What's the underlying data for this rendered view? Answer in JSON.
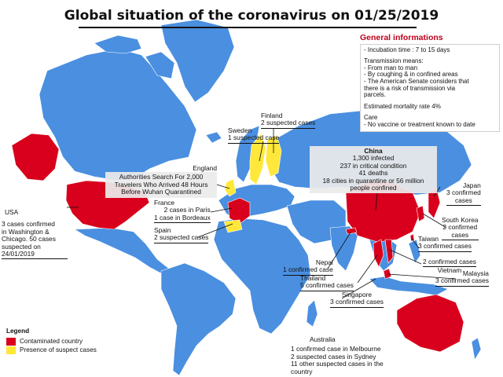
{
  "title": "Global situation of the coronavirus on 01/25/2019",
  "colors": {
    "ocean": "#ffffff",
    "land": "#4a8fe0",
    "contaminated": "#d8001c",
    "suspect": "#ffe83a"
  },
  "info": {
    "heading": "General informations",
    "incubation": "- Incubation time : 7 to 15 days",
    "transmission_title": "Transmission means:",
    "transmission": [
      "- From man to man",
      "- By coughing & in confined areas",
      "- The American Senate considers that",
      "  there is a risk of transmission via",
      "  parcels."
    ],
    "mortality": "Estimated mortality rate 4%",
    "care_title": "Care",
    "care": "- No vaccine or treatment known to date"
  },
  "countries": {
    "finland": {
      "name": "Finland",
      "lines": [
        "2 suspected cases"
      ]
    },
    "sweden": {
      "name": "Sweden",
      "lines": [
        "1 suspected case"
      ]
    },
    "china": {
      "name": "China",
      "lines": [
        "1,300 infected",
        "237 in critical condition",
        "41 deaths",
        "18 cities in quarantine or 56 million",
        "people confined"
      ]
    },
    "england": {
      "name": "England",
      "lines": [
        "Authorities Search For 2,000",
        "Travelers Who Arrived 48 Hours",
        "Before Wuhan Quarantined"
      ]
    },
    "japan": {
      "name": "Japan",
      "lines": [
        "3 confirmed",
        "cases"
      ]
    },
    "usa": {
      "name": "USA",
      "lines": [
        "3 cases confirmed",
        "in Washington &",
        "Chicago. 50 cases",
        "suspected on",
        "24/01/2019"
      ]
    },
    "france": {
      "name": "France",
      "lines": [
        "2 cases in Paris",
        "1 case in Bordeaux"
      ]
    },
    "south_korea": {
      "name": "South Korea",
      "lines": [
        "2 confirmed",
        "cases"
      ]
    },
    "spain": {
      "name": "Spain",
      "lines": [
        "2 suspected cases"
      ]
    },
    "taiwan": {
      "name": "Taiwan",
      "lines": [
        "3 confirmed cases"
      ]
    },
    "nepal": {
      "name": "Nepal",
      "lines": [
        "1 confirmed case"
      ]
    },
    "vietnam": {
      "name": "Vietnam",
      "lines": [
        "2 confirmed cases"
      ]
    },
    "thailand": {
      "name": "Thailand",
      "lines": [
        "5 confirmed cases"
      ]
    },
    "malaysia": {
      "name": "Malaysia",
      "lines": [
        "3 confirmed cases"
      ]
    },
    "singapore": {
      "name": "Singapore",
      "lines": [
        "3 confirmed cases"
      ]
    },
    "australia": {
      "name": "Australia",
      "lines": [
        "1 confirmed case in Melbourne",
        "2 suspected cases in Sydney",
        "11 other suspected cases in the",
        "country"
      ]
    }
  },
  "legend": {
    "title": "Legend",
    "contaminated": "Contaminated country",
    "suspect": "Presence of suspect cases"
  }
}
